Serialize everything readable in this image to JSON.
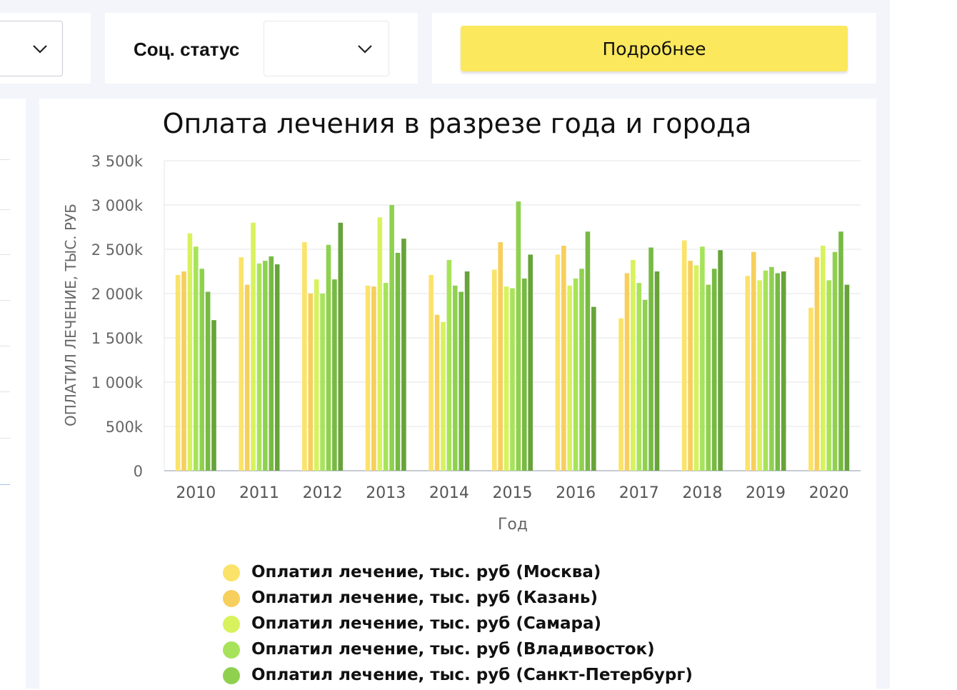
{
  "filters": {
    "status_label": "Соц. статус",
    "status_value": "",
    "details_button": "Подробнее"
  },
  "chart_data": {
    "type": "bar",
    "title": "Оплата лечения в разрезе года и города",
    "xlabel": "Год",
    "ylabel": "ОПЛАТИЛ ЛЕЧЕНИЕ, ТЫС. РУБ",
    "ylim": [
      0,
      3500
    ],
    "yticks": [
      0,
      500,
      1000,
      1500,
      2000,
      2500,
      3000,
      3500
    ],
    "ytick_labels": [
      "0",
      "500k",
      "1 000k",
      "1 500k",
      "2 000k",
      "2 500k",
      "3 000k",
      "3 500k"
    ],
    "grid": true,
    "legend_position": "bottom",
    "categories": [
      "2010",
      "2011",
      "2012",
      "2013",
      "2014",
      "2015",
      "2016",
      "2017",
      "2018",
      "2019",
      "2020"
    ],
    "series": [
      {
        "name": "Оплатил лечение, тыс. руб (Москва)",
        "color": "#fbe36a",
        "values": [
          2210,
          2410,
          2580,
          2090,
          2210,
          2270,
          2440,
          1720,
          2600,
          2200,
          1840
        ]
      },
      {
        "name": "Оплатил лечение, тыс. руб (Казань)",
        "color": "#f6cf5c",
        "values": [
          2250,
          2100,
          2000,
          2080,
          1760,
          2580,
          2540,
          2230,
          2370,
          2470,
          2410
        ]
      },
      {
        "name": "Оплатил лечение, тыс. руб (Самара)",
        "color": "#d7f25c",
        "values": [
          2680,
          2800,
          2160,
          2860,
          1680,
          2080,
          2090,
          2380,
          2320,
          2150,
          2540
        ]
      },
      {
        "name": "Оплатил лечение, тыс. руб (Владивосток)",
        "color": "#a7e35a",
        "values": [
          2530,
          2340,
          2000,
          2120,
          2380,
          2060,
          2170,
          2120,
          2530,
          2260,
          2150
        ]
      },
      {
        "name": "Оплатил лечение, тыс. руб (Санкт-Петербург)",
        "color": "#8fd14f",
        "values": [
          2280,
          2370,
          2550,
          3000,
          2090,
          3040,
          2280,
          1930,
          2100,
          2300,
          2470
        ]
      },
      {
        "name": "",
        "color": "#77ba43",
        "values": [
          2020,
          2420,
          2160,
          2460,
          2020,
          2170,
          2700,
          2520,
          2280,
          2230,
          2700
        ]
      },
      {
        "name": "",
        "color": "#67a33a",
        "values": [
          1700,
          2330,
          2800,
          2620,
          2250,
          2440,
          1850,
          2250,
          2490,
          2250,
          2100
        ]
      }
    ]
  }
}
